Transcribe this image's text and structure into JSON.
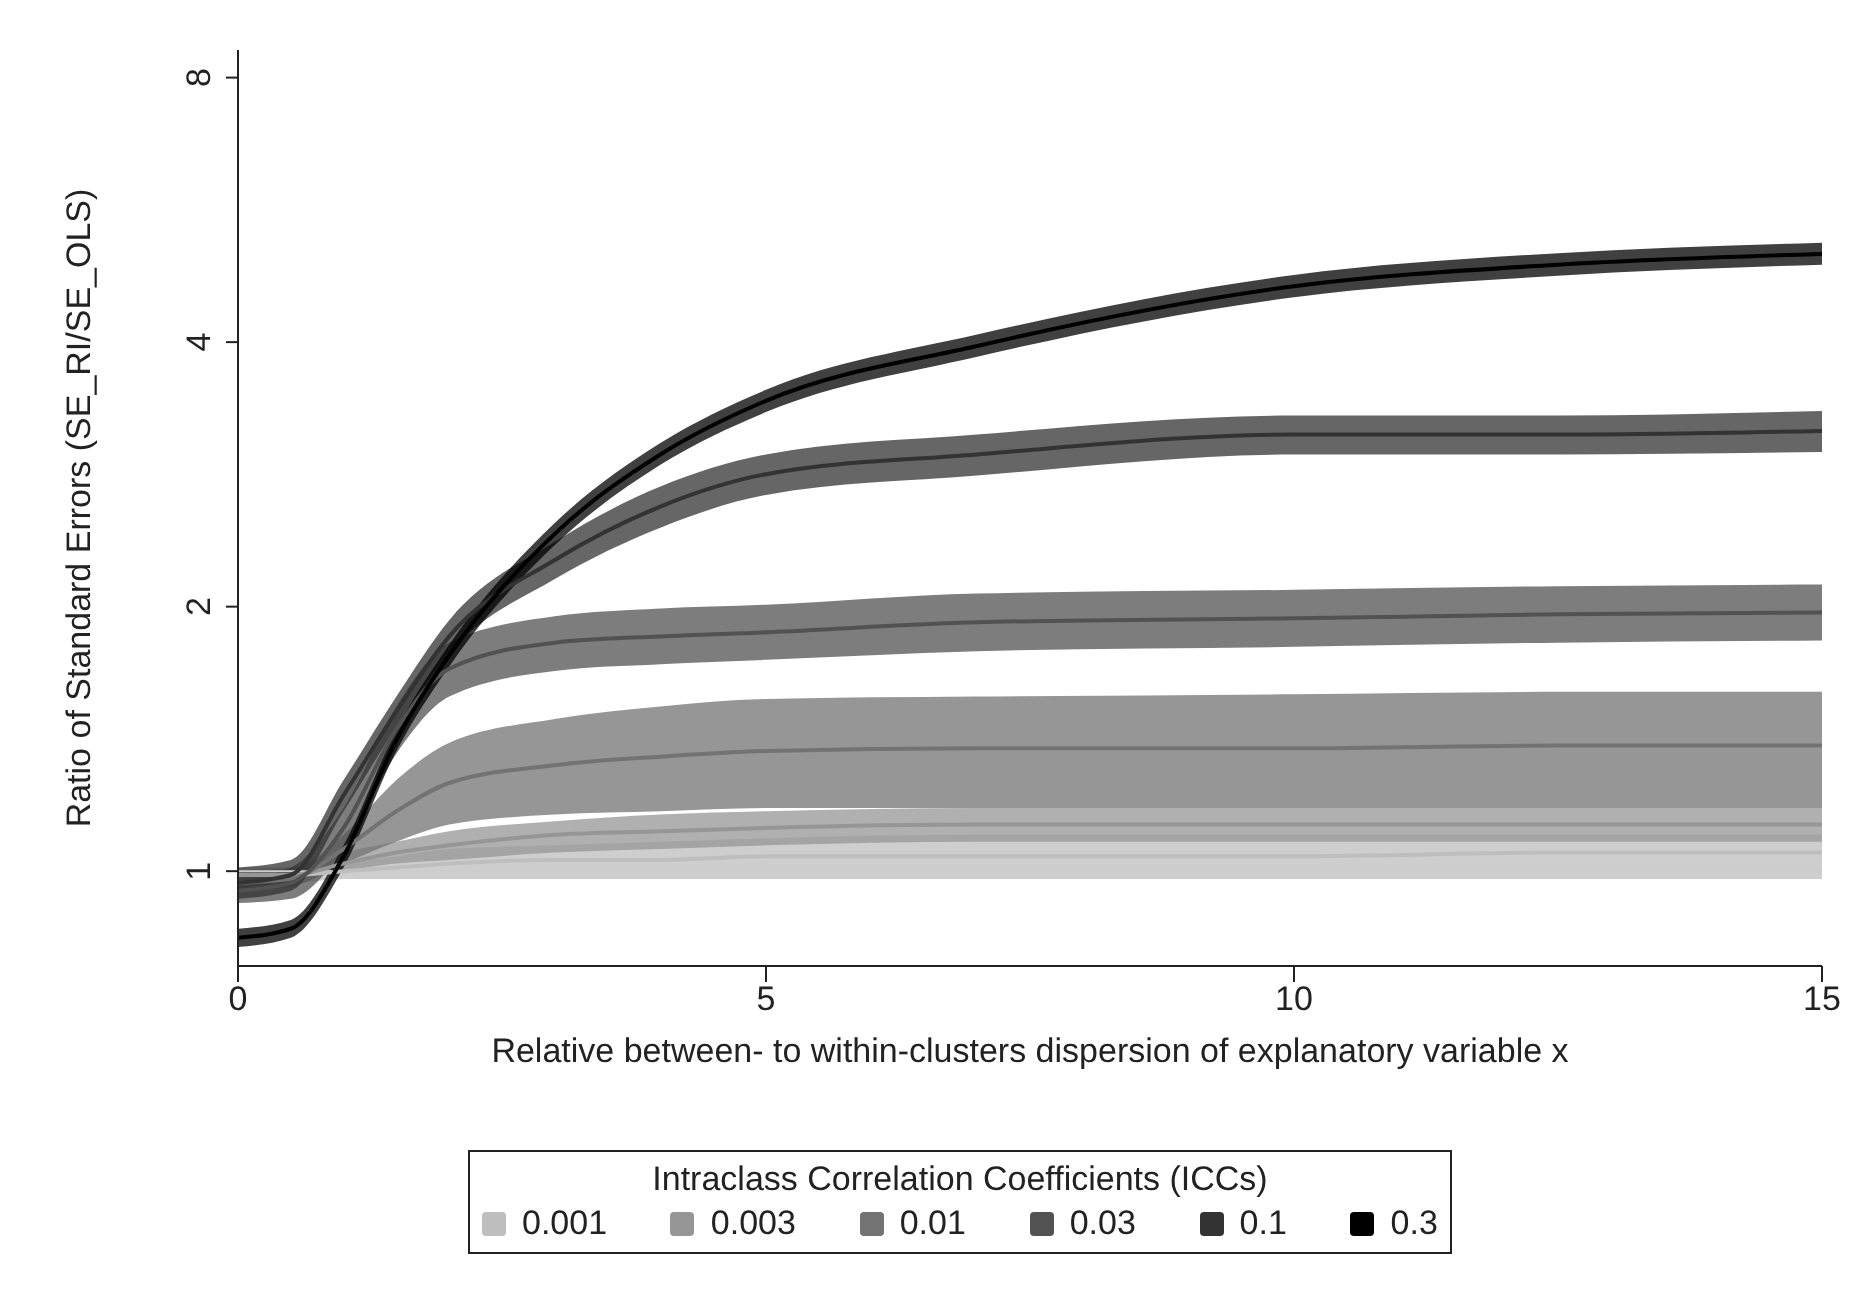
{
  "chart_data": {
    "type": "line",
    "xlabel": "Relative between- to within-clusters dispersion of explanatory variable x",
    "ylabel": "Ratio of Standard Errors (SE_RI/SE_OLS)",
    "legend_title": "Intraclass Correlation Coefficients (ICCs)",
    "legend": "bottom",
    "log": "y",
    "grid": false,
    "x": [
      0,
      0.5,
      1,
      1.5,
      2,
      3,
      4,
      5,
      7,
      10,
      12.5,
      15
    ],
    "xlim": [
      0,
      15
    ],
    "xticks": [
      0,
      5,
      10,
      15
    ],
    "ylim": [
      0.78,
      8.6
    ],
    "yticks": [
      1,
      2,
      4,
      8
    ],
    "ref_lines": [
      {
        "axis": "y",
        "value": 1,
        "color": "#cccccc"
      }
    ],
    "series": [
      {
        "name": "0.001",
        "color": "#bebebe",
        "values": [
          0.99,
          0.99,
          1.0,
          1.01,
          1.02,
          1.03,
          1.03,
          1.04,
          1.04,
          1.04,
          1.05,
          1.05
        ],
        "lower": [
          0.97,
          0.97,
          0.98,
          0.98,
          0.98,
          0.98,
          0.98,
          0.98,
          0.98,
          0.98,
          0.98,
          0.98
        ],
        "upper": [
          1.01,
          1.01,
          1.02,
          1.04,
          1.06,
          1.07,
          1.08,
          1.09,
          1.1,
          1.1,
          1.1,
          1.1
        ]
      },
      {
        "name": "0.003",
        "color": "#969696",
        "values": [
          0.99,
          0.99,
          1.02,
          1.05,
          1.07,
          1.1,
          1.11,
          1.12,
          1.13,
          1.13,
          1.13,
          1.13
        ],
        "lower": [
          0.98,
          0.98,
          1.0,
          1.02,
          1.03,
          1.05,
          1.06,
          1.07,
          1.08,
          1.08,
          1.08,
          1.08
        ],
        "upper": [
          1.0,
          1.01,
          1.05,
          1.08,
          1.11,
          1.14,
          1.16,
          1.17,
          1.18,
          1.18,
          1.18,
          1.18
        ]
      },
      {
        "name": "0.01",
        "color": "#737373",
        "values": [
          0.97,
          0.98,
          1.06,
          1.17,
          1.26,
          1.32,
          1.35,
          1.37,
          1.38,
          1.38,
          1.39,
          1.39
        ],
        "lower": [
          0.95,
          0.96,
          1.02,
          1.08,
          1.13,
          1.16,
          1.17,
          1.18,
          1.18,
          1.18,
          1.18,
          1.18
        ],
        "upper": [
          0.99,
          1.0,
          1.1,
          1.27,
          1.4,
          1.49,
          1.54,
          1.57,
          1.58,
          1.59,
          1.6,
          1.6
        ]
      },
      {
        "name": "0.03",
        "color": "#525252",
        "values": [
          0.95,
          0.97,
          1.12,
          1.45,
          1.7,
          1.82,
          1.85,
          1.87,
          1.92,
          1.94,
          1.96,
          1.97
        ],
        "lower": [
          0.92,
          0.93,
          1.06,
          1.36,
          1.58,
          1.69,
          1.72,
          1.74,
          1.78,
          1.8,
          1.82,
          1.83
        ],
        "upper": [
          0.98,
          1.01,
          1.18,
          1.54,
          1.82,
          1.95,
          1.99,
          2.01,
          2.07,
          2.09,
          2.11,
          2.12
        ]
      },
      {
        "name": "0.1",
        "color": "#333333",
        "values": [
          0.97,
          0.99,
          1.22,
          1.52,
          1.85,
          2.26,
          2.6,
          2.83,
          2.98,
          3.14,
          3.14,
          3.17
        ],
        "lower": [
          0.93,
          0.95,
          1.17,
          1.46,
          1.77,
          2.15,
          2.46,
          2.68,
          2.82,
          2.98,
          2.98,
          3.0
        ],
        "upper": [
          1.01,
          1.03,
          1.27,
          1.58,
          1.93,
          2.37,
          2.74,
          2.98,
          3.14,
          3.3,
          3.3,
          3.34
        ]
      },
      {
        "name": "0.3",
        "color": "#000000",
        "values": [
          0.84,
          0.86,
          1.04,
          1.41,
          1.76,
          2.42,
          2.98,
          3.43,
          3.96,
          4.63,
          4.9,
          5.04
        ],
        "lower": [
          0.82,
          0.84,
          1.01,
          1.37,
          1.71,
          2.35,
          2.9,
          3.33,
          3.85,
          4.5,
          4.76,
          4.9
        ],
        "upper": [
          0.86,
          0.88,
          1.07,
          1.45,
          1.81,
          2.49,
          3.07,
          3.53,
          4.08,
          4.77,
          5.05,
          5.19
        ]
      }
    ]
  }
}
